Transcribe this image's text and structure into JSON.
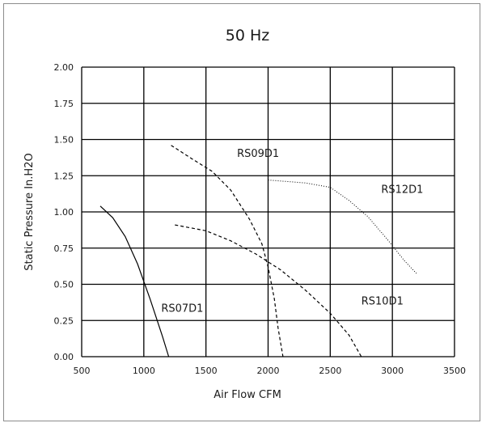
{
  "chart_data": {
    "type": "line",
    "title": "50 Hz",
    "xlabel": "Air Flow CFM",
    "ylabel": "Static Pressure In.H2O",
    "xlim": [
      500,
      3500
    ],
    "ylim": [
      0,
      2
    ],
    "xticks": [
      500,
      1000,
      1500,
      2000,
      2500,
      3000,
      3500
    ],
    "xtick_labels": [
      "500",
      "1000",
      "1500",
      "2000",
      "2500",
      "3000",
      "3500"
    ],
    "yticks": [
      0,
      0.25,
      0.5,
      0.75,
      1.0,
      1.25,
      1.5,
      1.75,
      2.0
    ],
    "ytick_labels": [
      "0.00",
      "0.25",
      "0.50",
      "0.75",
      "1.00",
      "1.25",
      "1.50",
      "1.75",
      "2.00"
    ],
    "grid": true,
    "legend": "inline labels",
    "series": [
      {
        "name": "RS07D1",
        "style": "solid",
        "x": [
          650,
          750,
          850,
          950,
          1000,
          1050,
          1100,
          1150,
          1200
        ],
        "y": [
          1.04,
          0.96,
          0.83,
          0.64,
          0.52,
          0.4,
          0.27,
          0.14,
          0.0
        ]
      },
      {
        "name": "RS09D1",
        "style": "dashed",
        "x": [
          1220,
          1400,
          1550,
          1700,
          1850,
          1950,
          2000,
          2050,
          2080,
          2120
        ],
        "y": [
          1.46,
          1.36,
          1.28,
          1.15,
          0.95,
          0.78,
          0.62,
          0.4,
          0.2,
          0.0
        ]
      },
      {
        "name": "RS10D1",
        "style": "dashed",
        "x": [
          1250,
          1500,
          1700,
          1900,
          2100,
          2300,
          2500,
          2650,
          2750
        ],
        "y": [
          0.91,
          0.87,
          0.8,
          0.71,
          0.6,
          0.46,
          0.3,
          0.15,
          0.0
        ]
      },
      {
        "name": "RS12D1",
        "style": "dotted",
        "x": [
          2000,
          2150,
          2300,
          2500,
          2650,
          2800,
          2950,
          3100,
          3200
        ],
        "y": [
          1.22,
          1.21,
          1.2,
          1.17,
          1.08,
          0.97,
          0.82,
          0.66,
          0.57
        ]
      }
    ],
    "annotations": [
      {
        "text": "RS07D1",
        "x": 1140,
        "y": 0.31
      },
      {
        "text": "RS09D1",
        "x": 1750,
        "y": 1.38
      },
      {
        "text": "RS10D1",
        "x": 2750,
        "y": 0.36
      },
      {
        "text": "RS12D1",
        "x": 2910,
        "y": 1.13
      }
    ]
  }
}
